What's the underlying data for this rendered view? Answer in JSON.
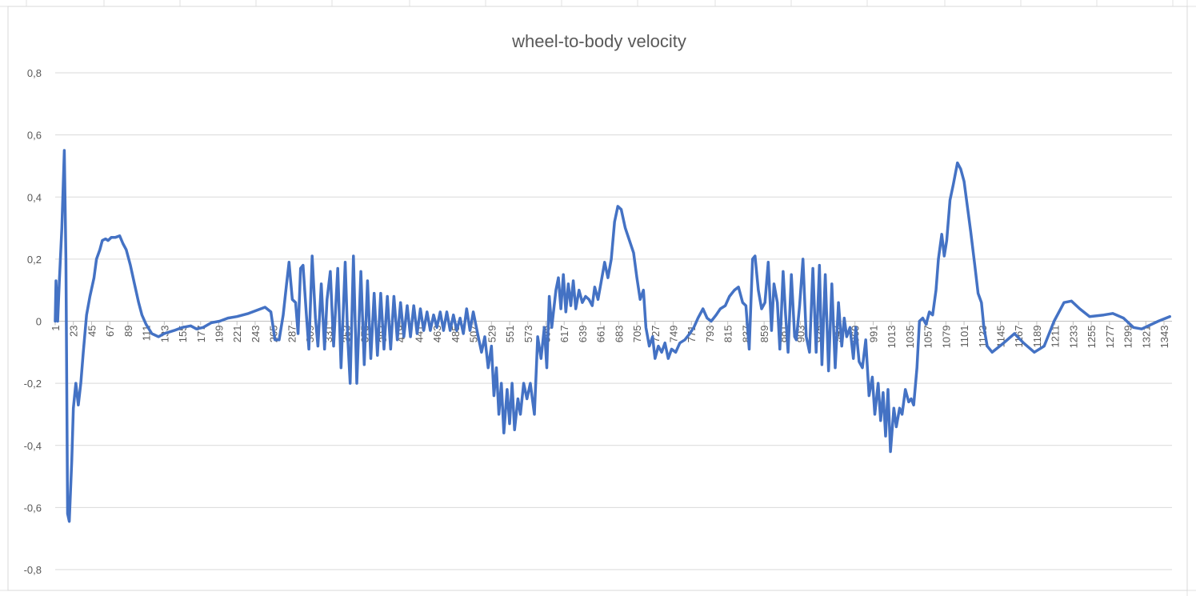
{
  "chart_data": {
    "type": "line",
    "title": "wheel-to-body velocity",
    "color": "#4472c4",
    "grid": true,
    "xlim": [
      1,
      1352
    ],
    "xticks": [
      1,
      23,
      45,
      67,
      89,
      111,
      133,
      155,
      177,
      199,
      221,
      243,
      265,
      287,
      309,
      331,
      353,
      375,
      397,
      419,
      441,
      463,
      485,
      507,
      529,
      551,
      573,
      595,
      617,
      639,
      661,
      683,
      705,
      727,
      749,
      771,
      793,
      815,
      837,
      859,
      881,
      903,
      925,
      947,
      969,
      991,
      1013,
      1035,
      1057,
      1079,
      1101,
      1123,
      1145,
      1167,
      1189,
      1211,
      1233,
      1255,
      1277,
      1299,
      1321,
      1343
    ],
    "ylim": [
      -0.8,
      0.8
    ],
    "yticks": [
      {
        "value": -0.8,
        "label": "-0,8"
      },
      {
        "value": -0.6,
        "label": "-0,6"
      },
      {
        "value": -0.4,
        "label": "-0,4"
      },
      {
        "value": -0.2,
        "label": "-0,2"
      },
      0,
      {
        "value": 0.2,
        "label": "0,2"
      },
      {
        "value": 0.4,
        "label": "0,4"
      },
      {
        "value": 0.6,
        "label": "0,6"
      },
      {
        "value": 0.8,
        "label": "0,8"
      }
    ],
    "x": [
      1,
      2,
      4,
      6,
      9,
      12,
      14,
      16,
      18,
      21,
      23,
      26,
      29,
      32,
      35,
      39,
      43,
      48,
      51,
      55,
      58,
      62,
      65,
      69,
      74,
      79,
      83,
      87,
      92,
      97,
      102,
      106,
      111,
      118,
      126,
      133,
      145,
      155,
      165,
      172,
      180,
      190,
      200,
      210,
      221,
      235,
      245,
      255,
      262,
      267,
      272,
      277,
      281,
      284,
      288,
      292,
      295,
      298,
      301,
      305,
      308,
      312,
      316,
      319,
      323,
      327,
      330,
      334,
      338,
      343,
      347,
      352,
      355,
      358,
      362,
      366,
      371,
      375,
      379,
      383,
      387,
      391,
      395,
      399,
      403,
      407,
      411,
      415,
      419,
      423,
      427,
      431,
      435,
      439,
      443,
      447,
      451,
      455,
      459,
      463,
      467,
      471,
      475,
      479,
      483,
      487,
      491,
      495,
      499,
      503,
      507,
      513,
      517,
      521,
      525,
      529,
      532,
      535,
      538,
      541,
      544,
      548,
      551,
      554,
      557,
      561,
      564,
      568,
      572,
      576,
      581,
      585,
      589,
      593,
      596,
      599,
      602,
      607,
      610,
      613,
      616,
      619,
      622,
      625,
      628,
      631,
      635,
      639,
      643,
      647,
      651,
      654,
      658,
      662,
      666,
      670,
      674,
      678,
      682,
      686,
      691,
      696,
      701,
      705,
      709,
      713,
      716,
      720,
      724,
      727,
      731,
      735,
      739,
      743,
      747,
      752,
      757,
      763,
      769,
      774,
      779,
      785,
      790,
      795,
      801,
      806,
      812,
      817,
      823,
      828,
      833,
      837,
      841,
      845,
      848,
      852,
      856,
      860,
      864,
      868,
      871,
      875,
      878,
      882,
      885,
      888,
      892,
      896,
      898,
      902,
      906,
      910,
      914,
      918,
      922,
      926,
      929,
      933,
      937,
      941,
      945,
      949,
      953,
      956,
      959,
      963,
      967,
      970,
      974,
      978,
      982,
      986,
      990,
      993,
      997,
      1000,
      1003,
      1006,
      1009,
      1012,
      1016,
      1019,
      1023,
      1026,
      1030,
      1034,
      1037,
      1040,
      1044,
      1047,
      1051,
      1055,
      1059,
      1063,
      1067,
      1070,
      1074,
      1077,
      1080,
      1084,
      1088,
      1093,
      1097,
      1101,
      1105,
      1109,
      1114,
      1118,
      1122,
      1125,
      1129,
      1135,
      1149,
      1162,
      1173,
      1186,
      1198,
      1210,
      1222,
      1231,
      1241,
      1253,
      1270,
      1281,
      1294,
      1306,
      1316,
      1336,
      1350
    ],
    "values": [
      0,
      0.13,
      0,
      0.13,
      0.3,
      0.55,
      0.2,
      -0.62,
      -0.645,
      -0.45,
      -0.28,
      -0.2,
      -0.27,
      -0.2,
      -0.1,
      0.02,
      0.08,
      0.14,
      0.2,
      0.23,
      0.26,
      0.265,
      0.26,
      0.27,
      0.27,
      0.275,
      0.25,
      0.23,
      0.18,
      0.12,
      0.06,
      0.02,
      -0.01,
      -0.04,
      -0.05,
      -0.04,
      -0.03,
      -0.02,
      -0.015,
      -0.025,
      -0.02,
      -0.005,
      0,
      0.01,
      0.015,
      0.025,
      0.035,
      0.045,
      0.03,
      -0.06,
      -0.06,
      0.02,
      0.12,
      0.19,
      0.07,
      0.06,
      -0.04,
      0.17,
      0.18,
      0.02,
      -0.09,
      0.21,
      0.01,
      -0.08,
      0.12,
      -0.09,
      0.07,
      0.16,
      -0.08,
      0.17,
      -0.15,
      0.19,
      -0.05,
      -0.2,
      0.21,
      -0.2,
      0.16,
      -0.14,
      0.13,
      -0.12,
      0.09,
      -0.11,
      0.09,
      -0.09,
      0.08,
      -0.09,
      0.08,
      -0.06,
      0.06,
      -0.05,
      0.05,
      -0.05,
      0.05,
      -0.04,
      0.04,
      -0.03,
      0.03,
      -0.03,
      0.02,
      -0.02,
      0.03,
      -0.03,
      0.03,
      -0.03,
      0.02,
      -0.03,
      0.01,
      -0.04,
      0.04,
      -0.03,
      0.03,
      -0.05,
      -0.1,
      -0.05,
      -0.15,
      -0.08,
      -0.24,
      -0.15,
      -0.3,
      -0.2,
      -0.36,
      -0.22,
      -0.33,
      -0.2,
      -0.35,
      -0.25,
      -0.3,
      -0.2,
      -0.25,
      -0.2,
      -0.3,
      -0.05,
      -0.12,
      -0.02,
      -0.15,
      0.08,
      -0.02,
      0.1,
      0.14,
      0.04,
      0.15,
      0.03,
      0.12,
      0.05,
      0.13,
      0.04,
      0.1,
      0.06,
      0.08,
      0.07,
      0.05,
      0.11,
      0.07,
      0.13,
      0.19,
      0.14,
      0.2,
      0.32,
      0.37,
      0.36,
      0.3,
      0.26,
      0.22,
      0.14,
      0.07,
      0.1,
      -0.02,
      -0.08,
      -0.05,
      -0.12,
      -0.08,
      -0.1,
      -0.07,
      -0.12,
      -0.09,
      -0.1,
      -0.07,
      -0.06,
      -0.04,
      -0.02,
      0.01,
      0.04,
      0.01,
      0,
      0.02,
      0.04,
      0.05,
      0.08,
      0.1,
      0.11,
      0.06,
      0.05,
      -0.09,
      0.2,
      0.21,
      0.1,
      0.04,
      0.06,
      0.19,
      -0.03,
      0.12,
      0.06,
      -0.09,
      0.16,
      0.02,
      -0.1,
      0.15,
      -0.05,
      -0.06,
      0.05,
      0.2,
      -0.05,
      -0.1,
      0.17,
      -0.1,
      0.18,
      -0.14,
      0.15,
      -0.16,
      0.12,
      -0.15,
      0.06,
      -0.08,
      0.01,
      -0.05,
      -0.02,
      -0.12,
      -0.02,
      -0.13,
      -0.15,
      -0.06,
      -0.24,
      -0.18,
      -0.3,
      -0.2,
      -0.32,
      -0.23,
      -0.37,
      -0.22,
      -0.42,
      -0.28,
      -0.34,
      -0.28,
      -0.3,
      -0.22,
      -0.26,
      -0.25,
      -0.27,
      -0.15,
      0,
      0.01,
      -0.01,
      0.03,
      0.02,
      0.1,
      0.2,
      0.28,
      0.21,
      0.26,
      0.39,
      0.44,
      0.51,
      0.49,
      0.45,
      0.37,
      0.29,
      0.18,
      0.09,
      0.06,
      -0.02,
      -0.08,
      -0.1,
      -0.07,
      -0.04,
      -0.07,
      -0.1,
      -0.08,
      0,
      0.06,
      0.065,
      0.04,
      0.015,
      0.02,
      0.025,
      0.01,
      -0.02,
      -0.025,
      0,
      0.015
    ]
  }
}
